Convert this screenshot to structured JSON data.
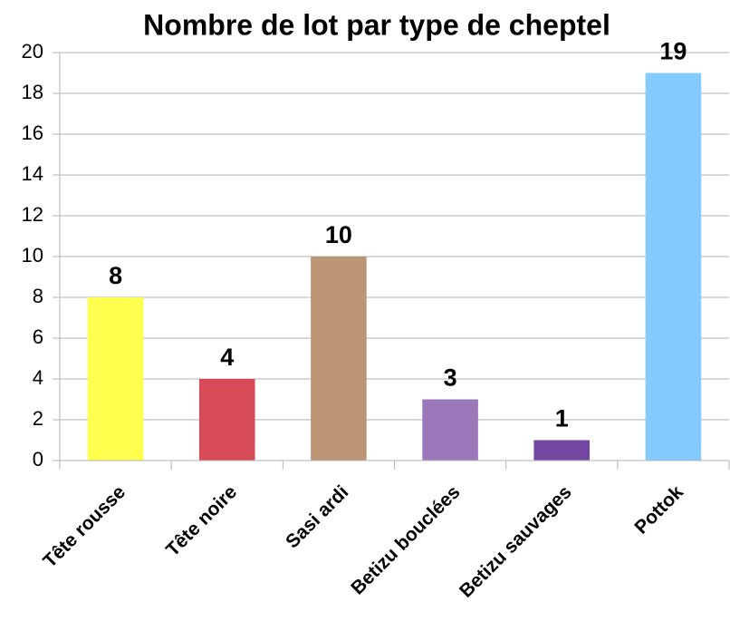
{
  "chart_data": {
    "type": "bar",
    "title": "Nombre de lot par type de cheptel",
    "categories": [
      "Tête rousse",
      "Tête noire",
      "Sasi ardi",
      "Betizu bouclées",
      "Betizu sauvages",
      "Pottok"
    ],
    "values": [
      8,
      4,
      10,
      3,
      1,
      19
    ],
    "colors": [
      "#ffff4d",
      "#d84c57",
      "#bb9574",
      "#9b78b9",
      "#7246a1",
      "#83caff"
    ],
    "ylim": [
      0,
      20
    ],
    "yticks": [
      0,
      2,
      4,
      6,
      8,
      10,
      12,
      14,
      16,
      18,
      20
    ],
    "grid": true
  }
}
